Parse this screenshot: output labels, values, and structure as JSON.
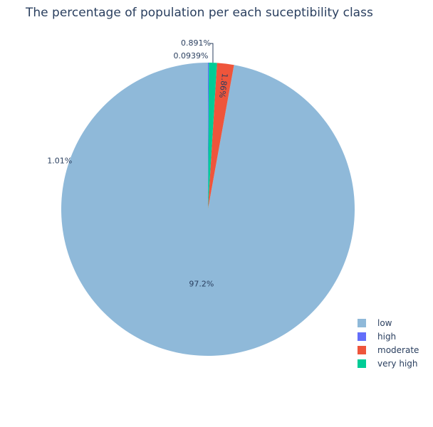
{
  "chart_data": {
    "type": "pie",
    "title": "The percentage of population per each suceptibility class",
    "slices": [
      {
        "label": "low",
        "value": 97.2,
        "pct_text": "97.2%",
        "color": "#8fb9d9"
      },
      {
        "label": "moderate",
        "value": 1.86,
        "pct_text": "1.86%",
        "color": "#ef553b"
      },
      {
        "label": "very high",
        "value": 0.891,
        "pct_text": "0.891%",
        "color": "#00cc96"
      },
      {
        "label": "high",
        "value": 0.0939,
        "pct_text": "0.0939%",
        "color": "#636efa"
      }
    ],
    "extra_labels": [
      "1.01%"
    ],
    "legend": [
      {
        "label": "low",
        "color": "#8fb9d9"
      },
      {
        "label": "high",
        "color": "#636efa"
      },
      {
        "label": "moderate",
        "color": "#ef553b"
      },
      {
        "label": "very high",
        "color": "#00cc96"
      }
    ],
    "legend_position": "bottom-right",
    "direction": "counterclockwise-from-top"
  }
}
